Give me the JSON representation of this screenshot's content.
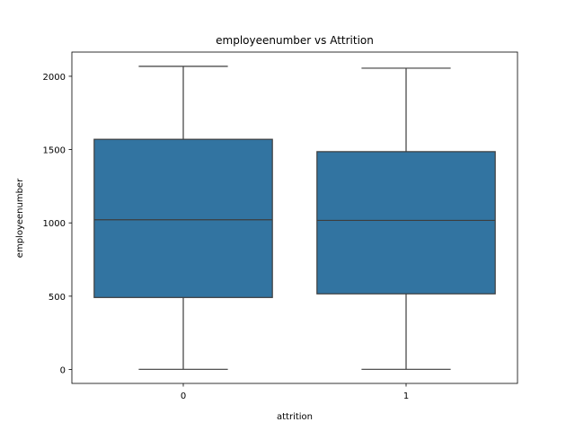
{
  "chart_data": {
    "type": "box",
    "title": "employeenumber vs Attrition",
    "xlabel": "attrition",
    "ylabel": "employeenumber",
    "ylim": [
      -95,
      2165
    ],
    "yticks": [
      0,
      500,
      1000,
      1500,
      2000
    ],
    "ytick_labels": [
      "0",
      "500",
      "1000",
      "1500",
      "2000"
    ],
    "categories": [
      "0",
      "1"
    ],
    "boxes": [
      {
        "category": "0",
        "whisker_low": 1,
        "q1": 491,
        "median": 1021,
        "q3": 1570,
        "whisker_high": 2068
      },
      {
        "category": "1",
        "whisker_low": 1,
        "q1": 516,
        "median": 1017,
        "q3": 1486,
        "whisker_high": 2055
      }
    ],
    "grid": false,
    "legend": "none",
    "colors": {
      "box_fill": "#3274a1",
      "line": "#3d3d3d",
      "axis": "#000000"
    }
  }
}
